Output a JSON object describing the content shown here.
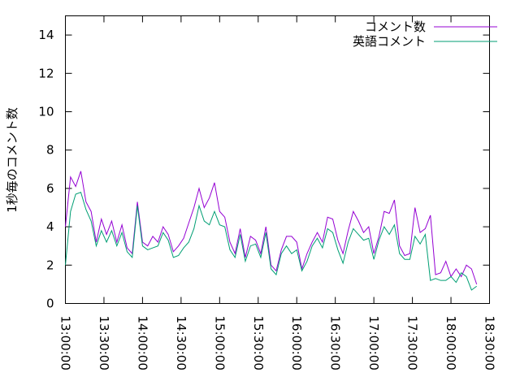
{
  "chart_data": {
    "type": "line",
    "y_label": "1秒毎のコメント数",
    "x": [
      "13:00:00",
      "13:04:00",
      "13:08:00",
      "13:12:00",
      "13:16:00",
      "13:20:00",
      "13:24:00",
      "13:28:00",
      "13:32:00",
      "13:36:00",
      "13:40:00",
      "13:44:00",
      "13:48:00",
      "13:52:00",
      "13:56:00",
      "14:00:00",
      "14:04:00",
      "14:08:00",
      "14:12:00",
      "14:16:00",
      "14:20:00",
      "14:24:00",
      "14:28:00",
      "14:32:00",
      "14:36:00",
      "14:40:00",
      "14:44:00",
      "14:48:00",
      "14:52:00",
      "14:56:00",
      "15:00:00",
      "15:04:00",
      "15:08:00",
      "15:12:00",
      "15:16:00",
      "15:20:00",
      "15:24:00",
      "15:28:00",
      "15:32:00",
      "15:36:00",
      "15:40:00",
      "15:44:00",
      "15:48:00",
      "15:52:00",
      "15:56:00",
      "16:00:00",
      "16:04:00",
      "16:08:00",
      "16:12:00",
      "16:16:00",
      "16:20:00",
      "16:24:00",
      "16:28:00",
      "16:32:00",
      "16:36:00",
      "16:40:00",
      "16:44:00",
      "16:48:00",
      "16:52:00",
      "16:56:00",
      "17:00:00",
      "17:04:00",
      "17:08:00",
      "17:12:00",
      "17:16:00",
      "17:20:00",
      "17:24:00",
      "17:28:00",
      "17:32:00",
      "17:36:00",
      "17:40:00",
      "17:44:00",
      "17:48:00",
      "17:52:00",
      "17:56:00",
      "18:00:00",
      "18:04:00",
      "18:08:00",
      "18:12:00",
      "18:16:00",
      "18:20:00"
    ],
    "series": [
      {
        "name": "コメント数",
        "color": "#9400d3",
        "values": [
          4.0,
          6.6,
          6.1,
          6.9,
          5.3,
          4.8,
          3.2,
          4.4,
          3.6,
          4.3,
          3.2,
          4.1,
          2.9,
          2.6,
          5.3,
          3.2,
          3.0,
          3.5,
          3.2,
          4.0,
          3.6,
          2.7,
          3.0,
          3.4,
          4.2,
          5.0,
          6.0,
          5.0,
          5.5,
          6.3,
          4.8,
          4.5,
          3.2,
          2.6,
          3.9,
          2.4,
          3.5,
          3.3,
          2.6,
          4.0,
          2.0,
          1.7,
          2.8,
          3.5,
          3.5,
          3.2,
          1.8,
          2.6,
          3.2,
          3.7,
          3.2,
          4.5,
          4.4,
          3.3,
          2.6,
          3.8,
          4.8,
          4.3,
          3.7,
          4.0,
          2.6,
          3.5,
          4.8,
          4.7,
          5.4,
          3.0,
          2.5,
          2.6,
          5.0,
          3.7,
          3.9,
          4.6,
          1.5,
          1.6,
          2.2,
          1.4,
          1.8,
          1.4,
          2.0,
          1.8,
          1.0
        ]
      },
      {
        "name": "英語コメント",
        "color": "#009e73",
        "values": [
          2.0,
          4.8,
          5.7,
          5.8,
          4.9,
          4.3,
          3.0,
          3.8,
          3.2,
          3.8,
          3.0,
          3.7,
          2.7,
          2.4,
          5.1,
          3.0,
          2.8,
          2.9,
          3.0,
          3.7,
          3.3,
          2.4,
          2.5,
          2.9,
          3.2,
          3.9,
          5.1,
          4.3,
          4.1,
          4.8,
          4.1,
          4.0,
          2.8,
          2.4,
          3.6,
          2.2,
          3.0,
          3.1,
          2.4,
          3.7,
          1.8,
          1.5,
          2.6,
          3.0,
          2.6,
          2.8,
          1.7,
          2.2,
          3.0,
          3.4,
          2.9,
          3.9,
          3.7,
          2.8,
          2.1,
          3.2,
          3.9,
          3.6,
          3.3,
          3.4,
          2.3,
          3.3,
          4.0,
          3.6,
          4.1,
          2.6,
          2.3,
          2.3,
          3.5,
          3.1,
          3.6,
          1.2,
          1.3,
          1.2,
          1.2,
          1.4,
          1.1,
          1.6,
          1.4,
          0.7,
          0.9
        ]
      }
    ],
    "xlim": [
      "13:00:00",
      "18:30:00"
    ],
    "xticks": [
      "13:00:00",
      "13:30:00",
      "14:00:00",
      "14:30:00",
      "15:00:00",
      "15:30:00",
      "16:00:00",
      "16:30:00",
      "17:00:00",
      "17:30:00",
      "18:00:00",
      "18:30:00"
    ],
    "ylim": [
      0,
      15
    ],
    "yticks": [
      0,
      2,
      4,
      6,
      8,
      10,
      12,
      14
    ],
    "legend": "top-right",
    "grid": false
  }
}
